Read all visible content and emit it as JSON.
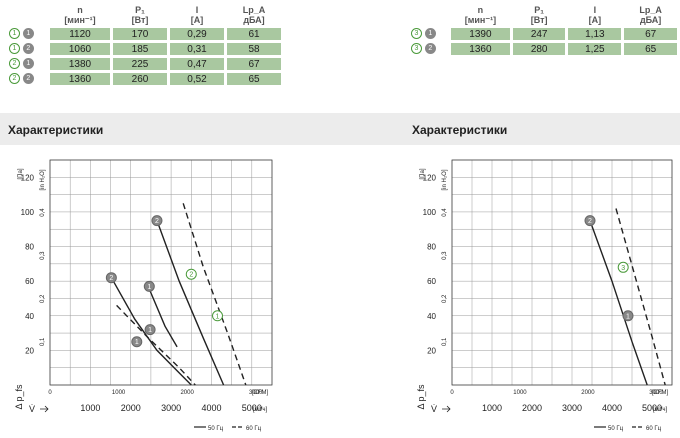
{
  "tables": [
    {
      "headers": [
        {
          "main": "n",
          "unit": "[мин⁻¹]"
        },
        {
          "main": "P₁",
          "unit": "[Вт]"
        },
        {
          "main": "I",
          "unit": "[A]"
        },
        {
          "main": "Lp_A",
          "unit": "дБА]"
        }
      ],
      "rows": [
        {
          "m1": "1",
          "m2": "1",
          "cells": [
            "1120",
            "170",
            "0,29",
            "61"
          ]
        },
        {
          "m1": "1",
          "m2": "2",
          "cells": [
            "1060",
            "185",
            "0,31",
            "58"
          ]
        },
        {
          "m1": "2",
          "m2": "1",
          "cells": [
            "1380",
            "225",
            "0,47",
            "67"
          ]
        },
        {
          "m1": "2",
          "m2": "2",
          "cells": [
            "1360",
            "260",
            "0,52",
            "65"
          ]
        }
      ]
    },
    {
      "headers": [
        {
          "main": "n",
          "unit": "[мин⁻¹]"
        },
        {
          "main": "P₁",
          "unit": "[Вт]"
        },
        {
          "main": "I",
          "unit": "[A]"
        },
        {
          "main": "Lp_A",
          "unit": "дБА]"
        }
      ],
      "rows": [
        {
          "m1": "3",
          "m2": "1",
          "cells": [
            "1390",
            "247",
            "1,13",
            "67"
          ]
        },
        {
          "m1": "3",
          "m2": "2",
          "cells": [
            "1360",
            "280",
            "1,25",
            "65"
          ]
        }
      ]
    }
  ],
  "headings": [
    "Характеристики",
    "Характеристики"
  ],
  "chart_data": [
    {
      "type": "line",
      "x_unit_top": "[CFM]",
      "x_unit_bottom": "[м³/ч]",
      "x_ticks_top": [
        "0",
        "1000",
        "2000",
        "3000"
      ],
      "x_ticks_bottom": [
        "1000",
        "2000",
        "3000",
        "4000",
        "5000"
      ],
      "y_unit_left": "[Па]",
      "y_unit_right": "[in H₂O]",
      "y_ticks_left": [
        "20",
        "40",
        "60",
        "80",
        "100",
        "120"
      ],
      "y_ticks_right": [
        "0,1",
        "0,2",
        "0,3",
        "0,4"
      ],
      "xlim": [
        0,
        5500
      ],
      "ylim": [
        0,
        130
      ],
      "y_axis_label": "Δ p_fs",
      "x_axis_label": "V̇",
      "legend": [
        "50 Гц",
        "60 Гц"
      ],
      "series": [
        {
          "marker": "1",
          "style": "solid",
          "x": [
            2450,
            2850,
            3150
          ],
          "y": [
            56,
            34,
            22
          ]
        },
        {
          "marker": "2",
          "style": "solid",
          "x": [
            1520,
            2100,
            2650,
            3200,
            3500
          ],
          "y": [
            62,
            38,
            20,
            7,
            0
          ]
        },
        {
          "marker": "2",
          "style": "solid",
          "x": [
            2650,
            3200,
            3800,
            4300
          ],
          "y": [
            95,
            60,
            27,
            0
          ]
        },
        {
          "marker": "1",
          "style": "dashed",
          "x": [
            1650,
            2400,
            3200,
            3600
          ],
          "y": [
            46,
            28,
            10,
            0
          ]
        },
        {
          "marker": "2",
          "style": "dashed",
          "x": [
            3300,
            3800,
            4400,
            4850
          ],
          "y": [
            105,
            68,
            30,
            0
          ]
        }
      ],
      "points": [
        {
          "label": "2",
          "x": 2650,
          "y": 95
        },
        {
          "label": "2",
          "x": 1520,
          "y": 62
        },
        {
          "label": "1",
          "x": 2460,
          "y": 57
        },
        {
          "label": "1",
          "x": 4150,
          "y": 40
        },
        {
          "label": "1",
          "x": 2150,
          "y": 25
        },
        {
          "label": "2",
          "x": 3500,
          "y": 64
        },
        {
          "label": "1",
          "x": 2480,
          "y": 32
        }
      ]
    },
    {
      "type": "line",
      "x_unit_top": "[CFM]",
      "x_unit_bottom": "[м³/ч]",
      "x_ticks_top": [
        "0",
        "1000",
        "2000",
        "3000"
      ],
      "x_ticks_bottom": [
        "1000",
        "2000",
        "3000",
        "4000",
        "5000"
      ],
      "y_unit_left": "[Па]",
      "y_unit_right": "[in H₂O]",
      "y_ticks_left": [
        "20",
        "40",
        "60",
        "80",
        "100",
        "120"
      ],
      "y_ticks_right": [
        "0,1",
        "0,2",
        "0,3",
        "0,4"
      ],
      "xlim": [
        0,
        5500
      ],
      "ylim": [
        0,
        130
      ],
      "y_axis_label": "Δ p_fs",
      "x_axis_label": "V̇",
      "legend": [
        "50 Гц",
        "60 Гц"
      ],
      "series": [
        {
          "marker": "2",
          "style": "solid",
          "x": [
            3450,
            4000,
            4500,
            4880
          ],
          "y": [
            95,
            60,
            25,
            0
          ]
        },
        {
          "marker": "3",
          "style": "dashed",
          "x": [
            4100,
            4550,
            5000,
            5330
          ],
          "y": [
            102,
            65,
            28,
            0
          ]
        }
      ],
      "points": [
        {
          "label": "2",
          "x": 3450,
          "y": 95
        },
        {
          "label": "1",
          "x": 4400,
          "y": 40
        },
        {
          "label": "3",
          "x": 4280,
          "y": 68
        }
      ]
    }
  ]
}
